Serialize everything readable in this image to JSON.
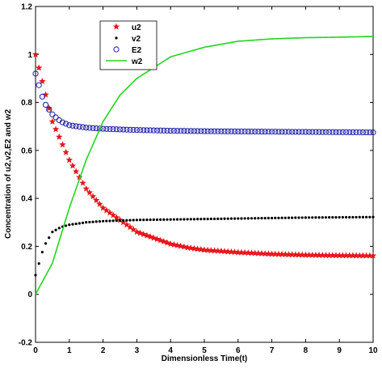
{
  "chart_data": {
    "type": "scatter",
    "title": "",
    "xlabel": "Dimensionless Time(t)",
    "ylabel": "Concentration of u2,v2,E2 and w2",
    "xlim": [
      0,
      10
    ],
    "ylim": [
      -0.2,
      1.2
    ],
    "xticks": [
      "0",
      "1",
      "2",
      "3",
      "4",
      "5",
      "6",
      "7",
      "8",
      "9",
      "10"
    ],
    "yticks": [
      "-0.2",
      "0",
      "0.2",
      "0.4",
      "0.6",
      "0.8",
      "1",
      "1.2"
    ],
    "grid": false,
    "legend_placement": "top-left",
    "series": [
      {
        "name": "u2",
        "marker": "star",
        "color": "#e8151b",
        "x": [
          0,
          0.5,
          1,
          1.5,
          2,
          2.5,
          3,
          3.5,
          4,
          4.5,
          5,
          6,
          7,
          8,
          9,
          10
        ],
        "y": [
          1.0,
          0.72,
          0.56,
          0.44,
          0.36,
          0.31,
          0.26,
          0.235,
          0.21,
          0.195,
          0.185,
          0.175,
          0.168,
          0.164,
          0.162,
          0.161
        ]
      },
      {
        "name": "v2",
        "marker": "dot",
        "color": "#000000",
        "x": [
          0,
          0.25,
          0.5,
          0.75,
          1,
          1.5,
          2,
          3,
          4,
          5,
          6,
          7,
          8,
          9,
          10
        ],
        "y": [
          0.08,
          0.2,
          0.26,
          0.28,
          0.29,
          0.3,
          0.305,
          0.31,
          0.312,
          0.314,
          0.316,
          0.318,
          0.32,
          0.321,
          0.322
        ]
      },
      {
        "name": "E2",
        "marker": "circle",
        "color": "#1a1aa6",
        "x": [
          0,
          0.25,
          0.5,
          0.75,
          1,
          1.5,
          2,
          3,
          4,
          5,
          6,
          7,
          8,
          9,
          10
        ],
        "y": [
          0.92,
          0.8,
          0.75,
          0.72,
          0.705,
          0.695,
          0.69,
          0.685,
          0.682,
          0.68,
          0.679,
          0.678,
          0.677,
          0.676,
          0.675
        ]
      },
      {
        "name": "w2",
        "marker": "line",
        "color": "#21d61f",
        "x": [
          0,
          0.5,
          1,
          1.5,
          2,
          2.5,
          3,
          4,
          5,
          6,
          7,
          8,
          9,
          10
        ],
        "y": [
          0.0,
          0.13,
          0.36,
          0.56,
          0.72,
          0.83,
          0.9,
          0.99,
          1.03,
          1.055,
          1.065,
          1.07,
          1.072,
          1.075
        ]
      }
    ]
  }
}
